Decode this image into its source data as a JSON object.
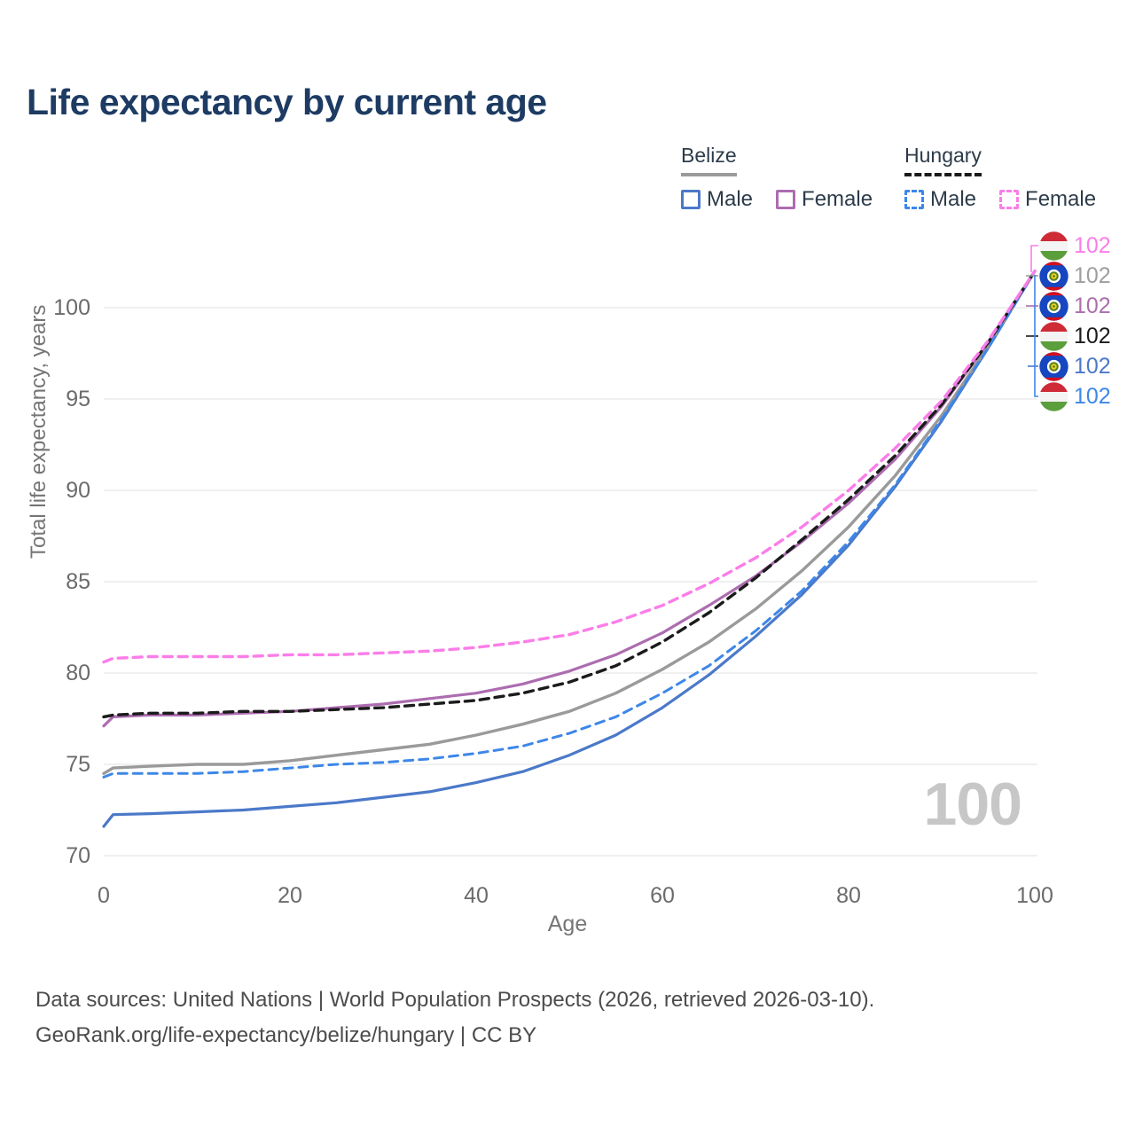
{
  "title": "Life expectancy by current age",
  "legend": {
    "belize": {
      "name": "Belize",
      "male": "Male",
      "female": "Female"
    },
    "hungary": {
      "name": "Hungary",
      "male": "Male",
      "female": "Female"
    }
  },
  "watermark": "100",
  "footer": {
    "line1": "Data sources: United Nations | World Population Prospects (2026, retrieved 2026-03-10).",
    "line2": "GeoRank.org/life-expectancy/belize/hungary | CC BY"
  },
  "chart_data": {
    "type": "line",
    "title": "Life expectancy by current age",
    "xlabel": "Age",
    "ylabel": "Total life expectancy, years",
    "xlim": [
      0,
      100
    ],
    "ylim": [
      70,
      102.5
    ],
    "xticks": [
      0,
      20,
      40,
      60,
      80,
      100
    ],
    "yticks": [
      70,
      75,
      80,
      85,
      90,
      95,
      100
    ],
    "grid": "horizontal-only",
    "gridline_color": "#e7e7e7",
    "axis_text_color": "#6b6b6b",
    "x": [
      0,
      1,
      5,
      10,
      15,
      20,
      25,
      30,
      35,
      40,
      45,
      50,
      55,
      60,
      65,
      70,
      75,
      80,
      85,
      90,
      95,
      100
    ],
    "series": [
      {
        "id": "belize-male",
        "name": "Belize Male",
        "color": "#4b79c9",
        "dash": "solid",
        "width": 3.2,
        "values": [
          71.6,
          72.25,
          72.3,
          72.4,
          72.5,
          72.7,
          72.9,
          73.2,
          73.5,
          74.0,
          74.6,
          75.5,
          76.6,
          78.1,
          79.9,
          82.0,
          84.3,
          87.0,
          90.2,
          93.8,
          97.8,
          102
        ]
      },
      {
        "id": "belize-total",
        "name": "Belize",
        "color": "#9a9a9a",
        "dash": "solid",
        "width": 3.4,
        "values": [
          74.5,
          74.8,
          74.9,
          75.0,
          75.0,
          75.2,
          75.5,
          75.8,
          76.1,
          76.6,
          77.2,
          77.9,
          78.9,
          80.2,
          81.7,
          83.5,
          85.6,
          88.0,
          90.8,
          94.1,
          97.9,
          102
        ]
      },
      {
        "id": "belize-female",
        "name": "Belize Female",
        "color": "#ad6cb0",
        "dash": "solid",
        "width": 3.2,
        "values": [
          77.1,
          77.6,
          77.7,
          77.7,
          77.8,
          77.9,
          78.1,
          78.3,
          78.6,
          78.9,
          79.4,
          80.1,
          81.0,
          82.2,
          83.7,
          85.3,
          87.2,
          89.3,
          91.7,
          94.6,
          98.1,
          102
        ]
      },
      {
        "id": "hungary-male",
        "name": "Hungary Male",
        "color": "#3d87e8",
        "dash": "dashed",
        "width": 3.0,
        "values": [
          74.3,
          74.5,
          74.5,
          74.5,
          74.6,
          74.8,
          75.0,
          75.1,
          75.3,
          75.6,
          76.0,
          76.7,
          77.6,
          78.9,
          80.4,
          82.3,
          84.5,
          87.2,
          90.3,
          93.9,
          97.8,
          102
        ]
      },
      {
        "id": "hungary-total",
        "name": "Hungary",
        "color": "#1b1b1b",
        "dash": "dashed",
        "width": 3.4,
        "values": [
          77.6,
          77.7,
          77.8,
          77.8,
          77.9,
          77.9,
          78.0,
          78.1,
          78.3,
          78.5,
          78.9,
          79.5,
          80.4,
          81.7,
          83.3,
          85.2,
          87.3,
          89.5,
          91.9,
          94.7,
          98.1,
          102
        ]
      },
      {
        "id": "hungary-female",
        "name": "Hungary Female",
        "color": "#fb7de9",
        "dash": "dashed",
        "width": 3.4,
        "values": [
          80.6,
          80.8,
          80.9,
          80.9,
          80.9,
          81.0,
          81.0,
          81.1,
          81.2,
          81.4,
          81.7,
          82.1,
          82.8,
          83.7,
          84.9,
          86.3,
          88.0,
          90.0,
          92.3,
          94.9,
          98.2,
          102
        ]
      }
    ],
    "legend_position": "top-right",
    "end_labels": [
      {
        "value": "102",
        "flag": "hungary",
        "series": "hungary-female",
        "color": "#fb7de9"
      },
      {
        "value": "102",
        "flag": "belize",
        "series": "belize-total",
        "color": "#9e9e9e"
      },
      {
        "value": "102",
        "flag": "belize",
        "series": "belize-female",
        "color": "#ab6fad"
      },
      {
        "value": "102",
        "flag": "hungary",
        "series": "hungary-total",
        "color": "#1b1b1b"
      },
      {
        "value": "102",
        "flag": "belize",
        "series": "belize-male",
        "color": "#4b79c9"
      },
      {
        "value": "102",
        "flag": "hungary",
        "series": "hungary-male",
        "color": "#3d87e8"
      }
    ]
  }
}
